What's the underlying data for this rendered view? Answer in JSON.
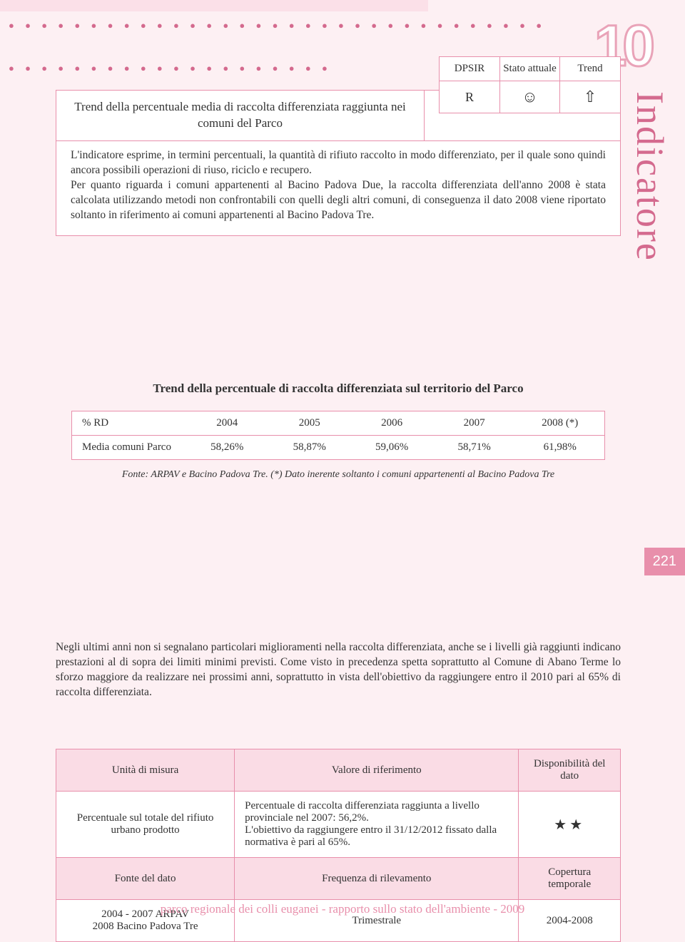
{
  "decor": {
    "dots1": "● ● ● ● ● ● ● ● ● ● ● ● ● ● ● ● ● ● ● ● ● ● ● ● ● ● ● ● ● ● ● ● ●",
    "dots2": "● ● ● ● ● ● ● ● ● ● ● ● ● ● ● ● ● ● ● ●"
  },
  "chapter_number": "10",
  "side_label": "Indicatore",
  "header": {
    "title": "Trend della percentuale media di raccolta differenziata raggiunta nei comuni del Parco",
    "cols": {
      "c1": "DPSIR",
      "c2": "Stato attuale",
      "c3": "Trend"
    },
    "vals": {
      "v1": "R",
      "v2": "☺",
      "v3": "⇧"
    }
  },
  "intro_text": "L'indicatore esprime, in termini percentuali, la quantità di rifiuto raccolto in modo differenziato, per il quale sono quindi ancora possibili operazioni di riuso, riciclo e recupero.\nPer quanto riguarda i comuni appartenenti al Bacino Padova Due, la raccolta differenziata dell'anno 2008 è stata calcolata utilizzando metodi non confrontabili con quelli degli altri comuni, di conseguenza il dato 2008 viene riportato soltanto in riferimento ai comuni appartenenti al Bacino Padova Tre.",
  "table": {
    "title": "Trend della percentuale di raccolta differenziata sul territorio del Parco",
    "headers": [
      "% RD",
      "2004",
      "2005",
      "2006",
      "2007",
      "2008 (*)"
    ],
    "row_label": "Media comuni Parco",
    "values": [
      "58,26%",
      "58,87%",
      "59,06%",
      "58,71%",
      "61,98%"
    ],
    "note": "Fonte: ARPAV e Bacino Padova Tre. (*) Dato inerente soltanto i comuni appartenenti al Bacino Padova Tre"
  },
  "page_number": "221",
  "body_para": "Negli ultimi anni non si segnalano particolari miglioramenti nella raccolta differenziata, anche se i livelli già raggiunti indicano prestazioni al di sopra dei limiti minimi previsti. Come visto in precedenza spetta soprattutto al Comune di Abano Terme lo sforzo maggiore da realizzare nei prossimi anni, soprattutto in vista dell'obiettivo da raggiungere entro il 2010 pari al 65% di raccolta differenziata.",
  "metadata": {
    "h1": "Unità di misura",
    "h2": "Valore di riferimento",
    "h3": "Disponibilità del dato",
    "r1c1": "Percentuale sul totale del rifiuto urbano prodotto",
    "r1c2": "Percentuale di raccolta differenziata raggiunta a livello provinciale nel 2007: 56,2%.\nL'obiettivo da raggiungere entro il 31/12/2012 fissato dalla normativa è pari al 65%.",
    "r1c3": "★★",
    "h4": "Fonte del dato",
    "h5": "Frequenza di rilevamento",
    "h6": "Copertura temporale",
    "r2c1": "2004 - 2007 ARPAV\n2008 Bacino Padova Tre",
    "r2c2": "Trimestrale",
    "r2c3": "2004-2008"
  },
  "footer": "parco regionale dei colli euganei - rapporto sullo stato dell'ambiente - 2009",
  "colors": {
    "page_bg": "#fdf0f3",
    "accent": "#e88fab",
    "dots": "#d46a8e",
    "header_bg": "#fadce5"
  }
}
